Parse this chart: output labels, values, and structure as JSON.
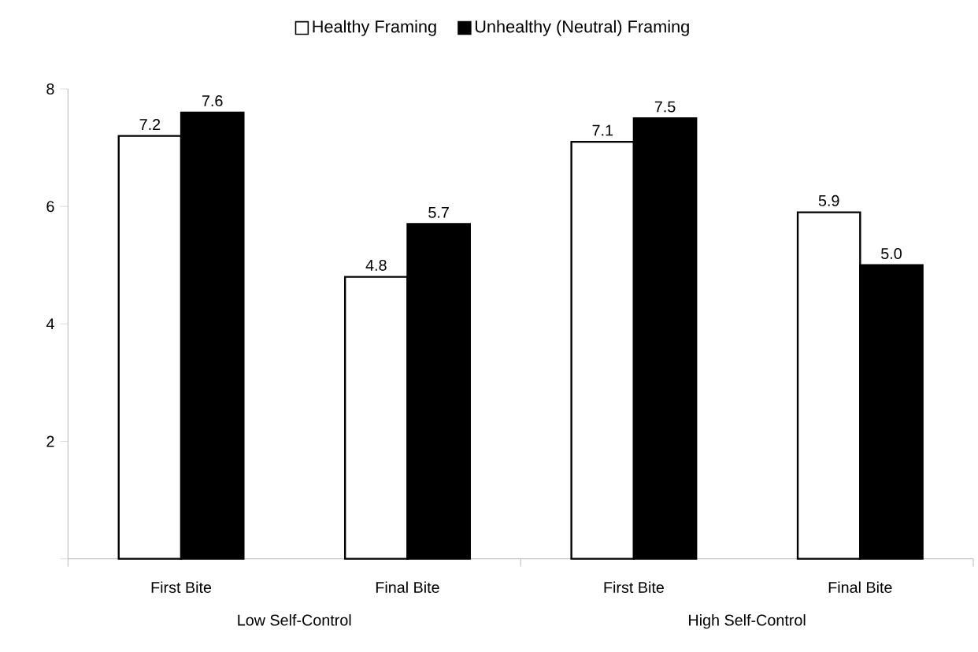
{
  "chart_data": {
    "type": "bar",
    "categories": [
      "First Bite",
      "Final Bite",
      "First Bite",
      "Final Bite"
    ],
    "series": [
      {
        "name": "Healthy Framing",
        "color": "#ffffff",
        "values": [
          7.2,
          4.8,
          7.1,
          5.9
        ]
      },
      {
        "name": "Unhealthy (Neutral) Framing",
        "color": "#000000",
        "values": [
          7.6,
          5.7,
          7.5,
          5.0
        ],
        "value_labels": [
          "7.6",
          "5.7",
          "7.5",
          "5.0"
        ]
      }
    ],
    "ylim": [
      0,
      8
    ],
    "yticks": [
      {
        "value": 0,
        "label": null
      },
      2,
      4,
      6,
      8
    ],
    "data_labels": true,
    "legend": "top",
    "grid": false,
    "annotations": [
      "Low Self-Control",
      "High Self-Control"
    ]
  }
}
